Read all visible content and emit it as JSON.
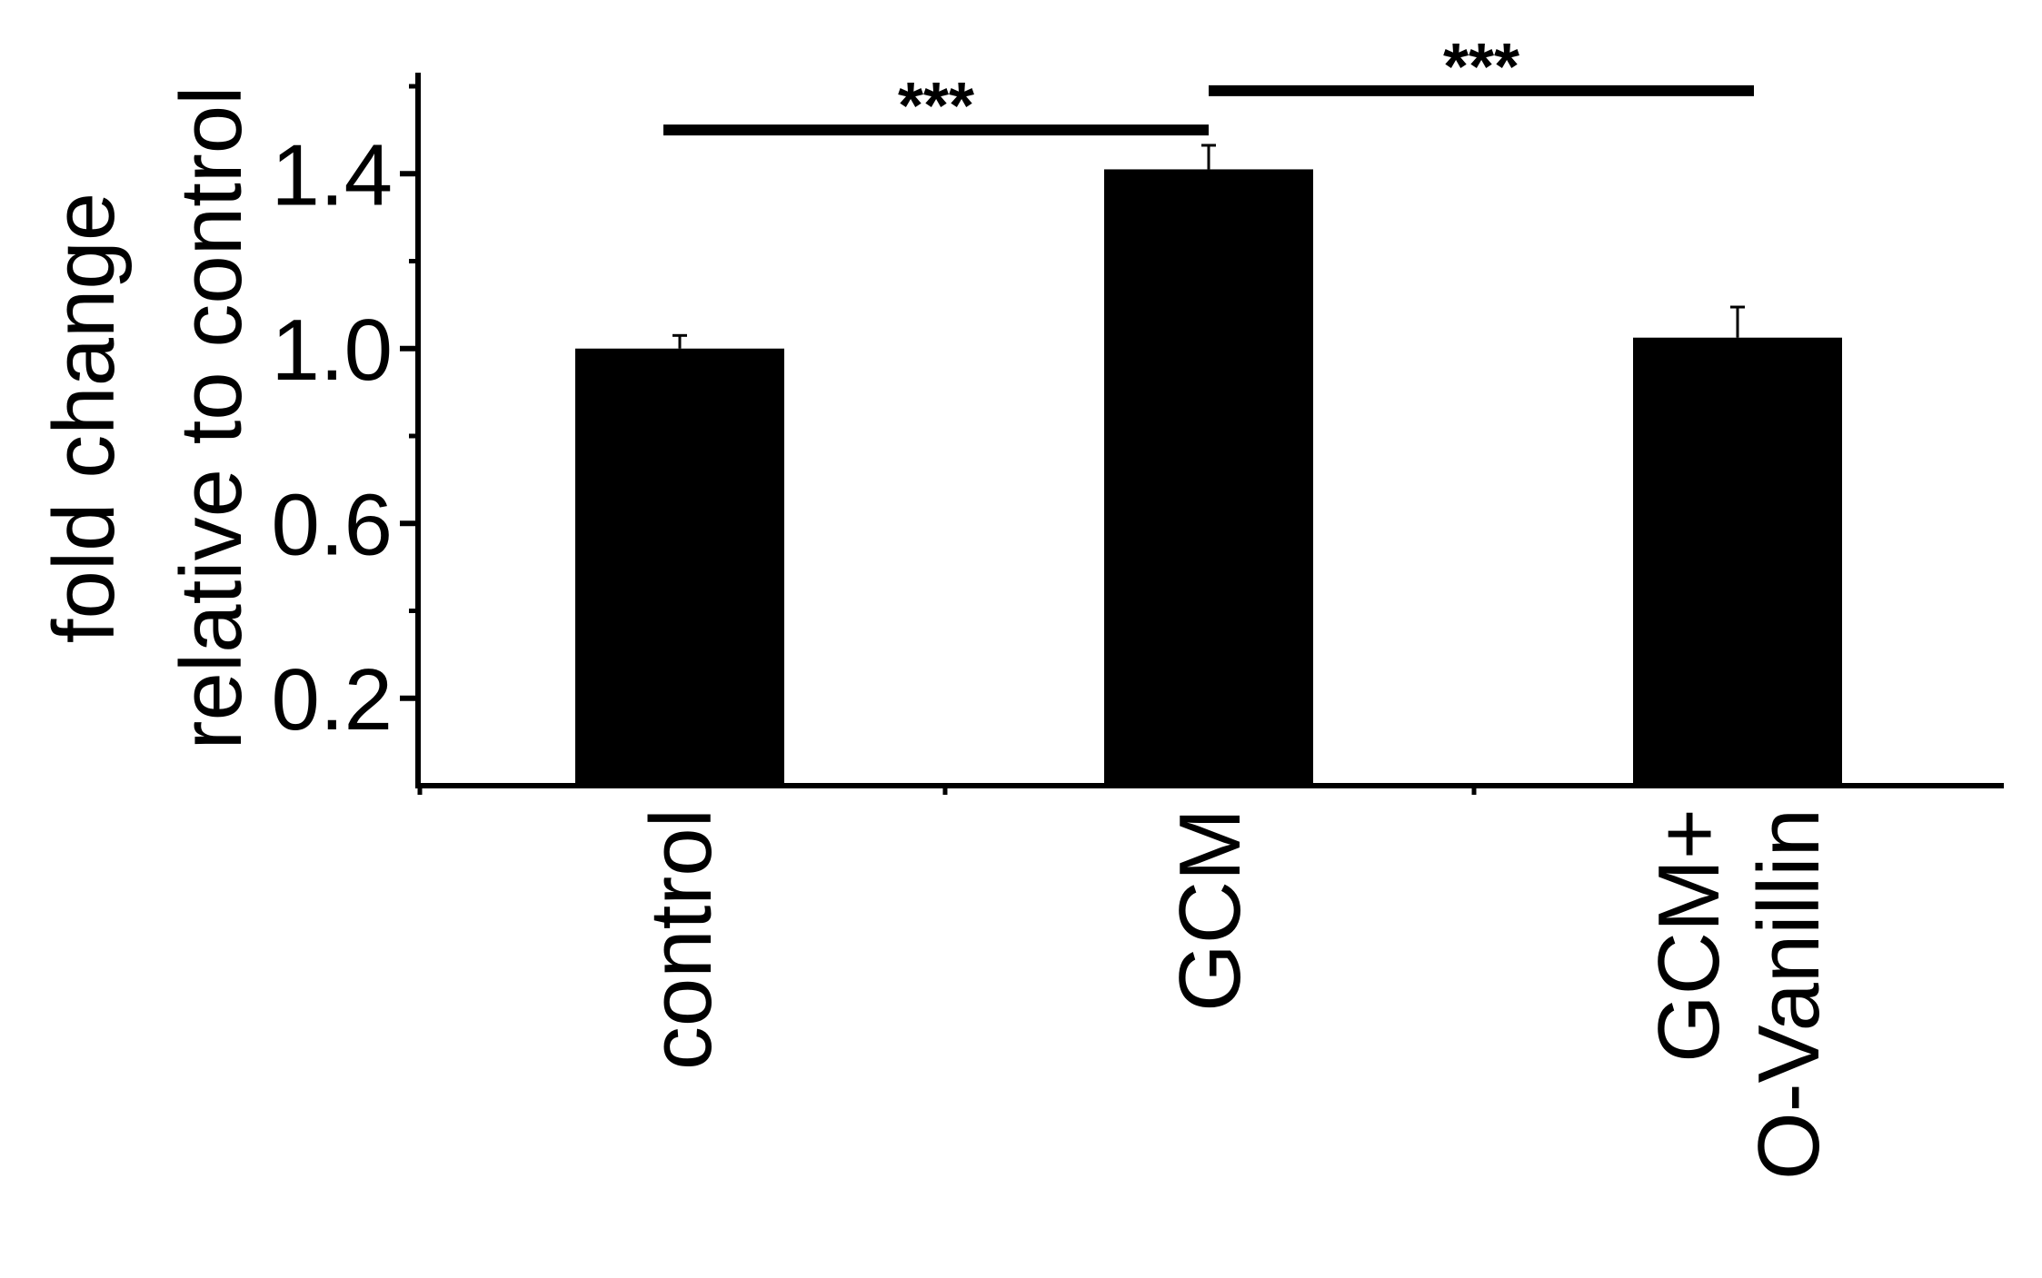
{
  "chart_data": {
    "type": "bar",
    "title": "",
    "xlabel": "",
    "ylabel": [
      "fold change",
      "relative to control"
    ],
    "categories": [
      [
        "control"
      ],
      [
        "GCM"
      ],
      [
        "GCM+",
        "O-Vanillin"
      ]
    ],
    "values": [
      1.0,
      1.41,
      1.025
    ],
    "errors": [
      0.03,
      0.055,
      0.07
    ],
    "ylim": [
      0,
      1.6
    ],
    "yticks": [
      0.2,
      0.6,
      1.0,
      1.4
    ],
    "ytick_labels": [
      "0.2",
      "0.6",
      "1.0",
      "1.4"
    ],
    "significance": [
      {
        "from": 0,
        "to": 1,
        "label": "***",
        "y": 1.5
      },
      {
        "from": 1,
        "to": 2,
        "label": "***",
        "y": 1.59
      }
    ],
    "bar_color": "#000000",
    "grid": false,
    "legend": "none"
  }
}
